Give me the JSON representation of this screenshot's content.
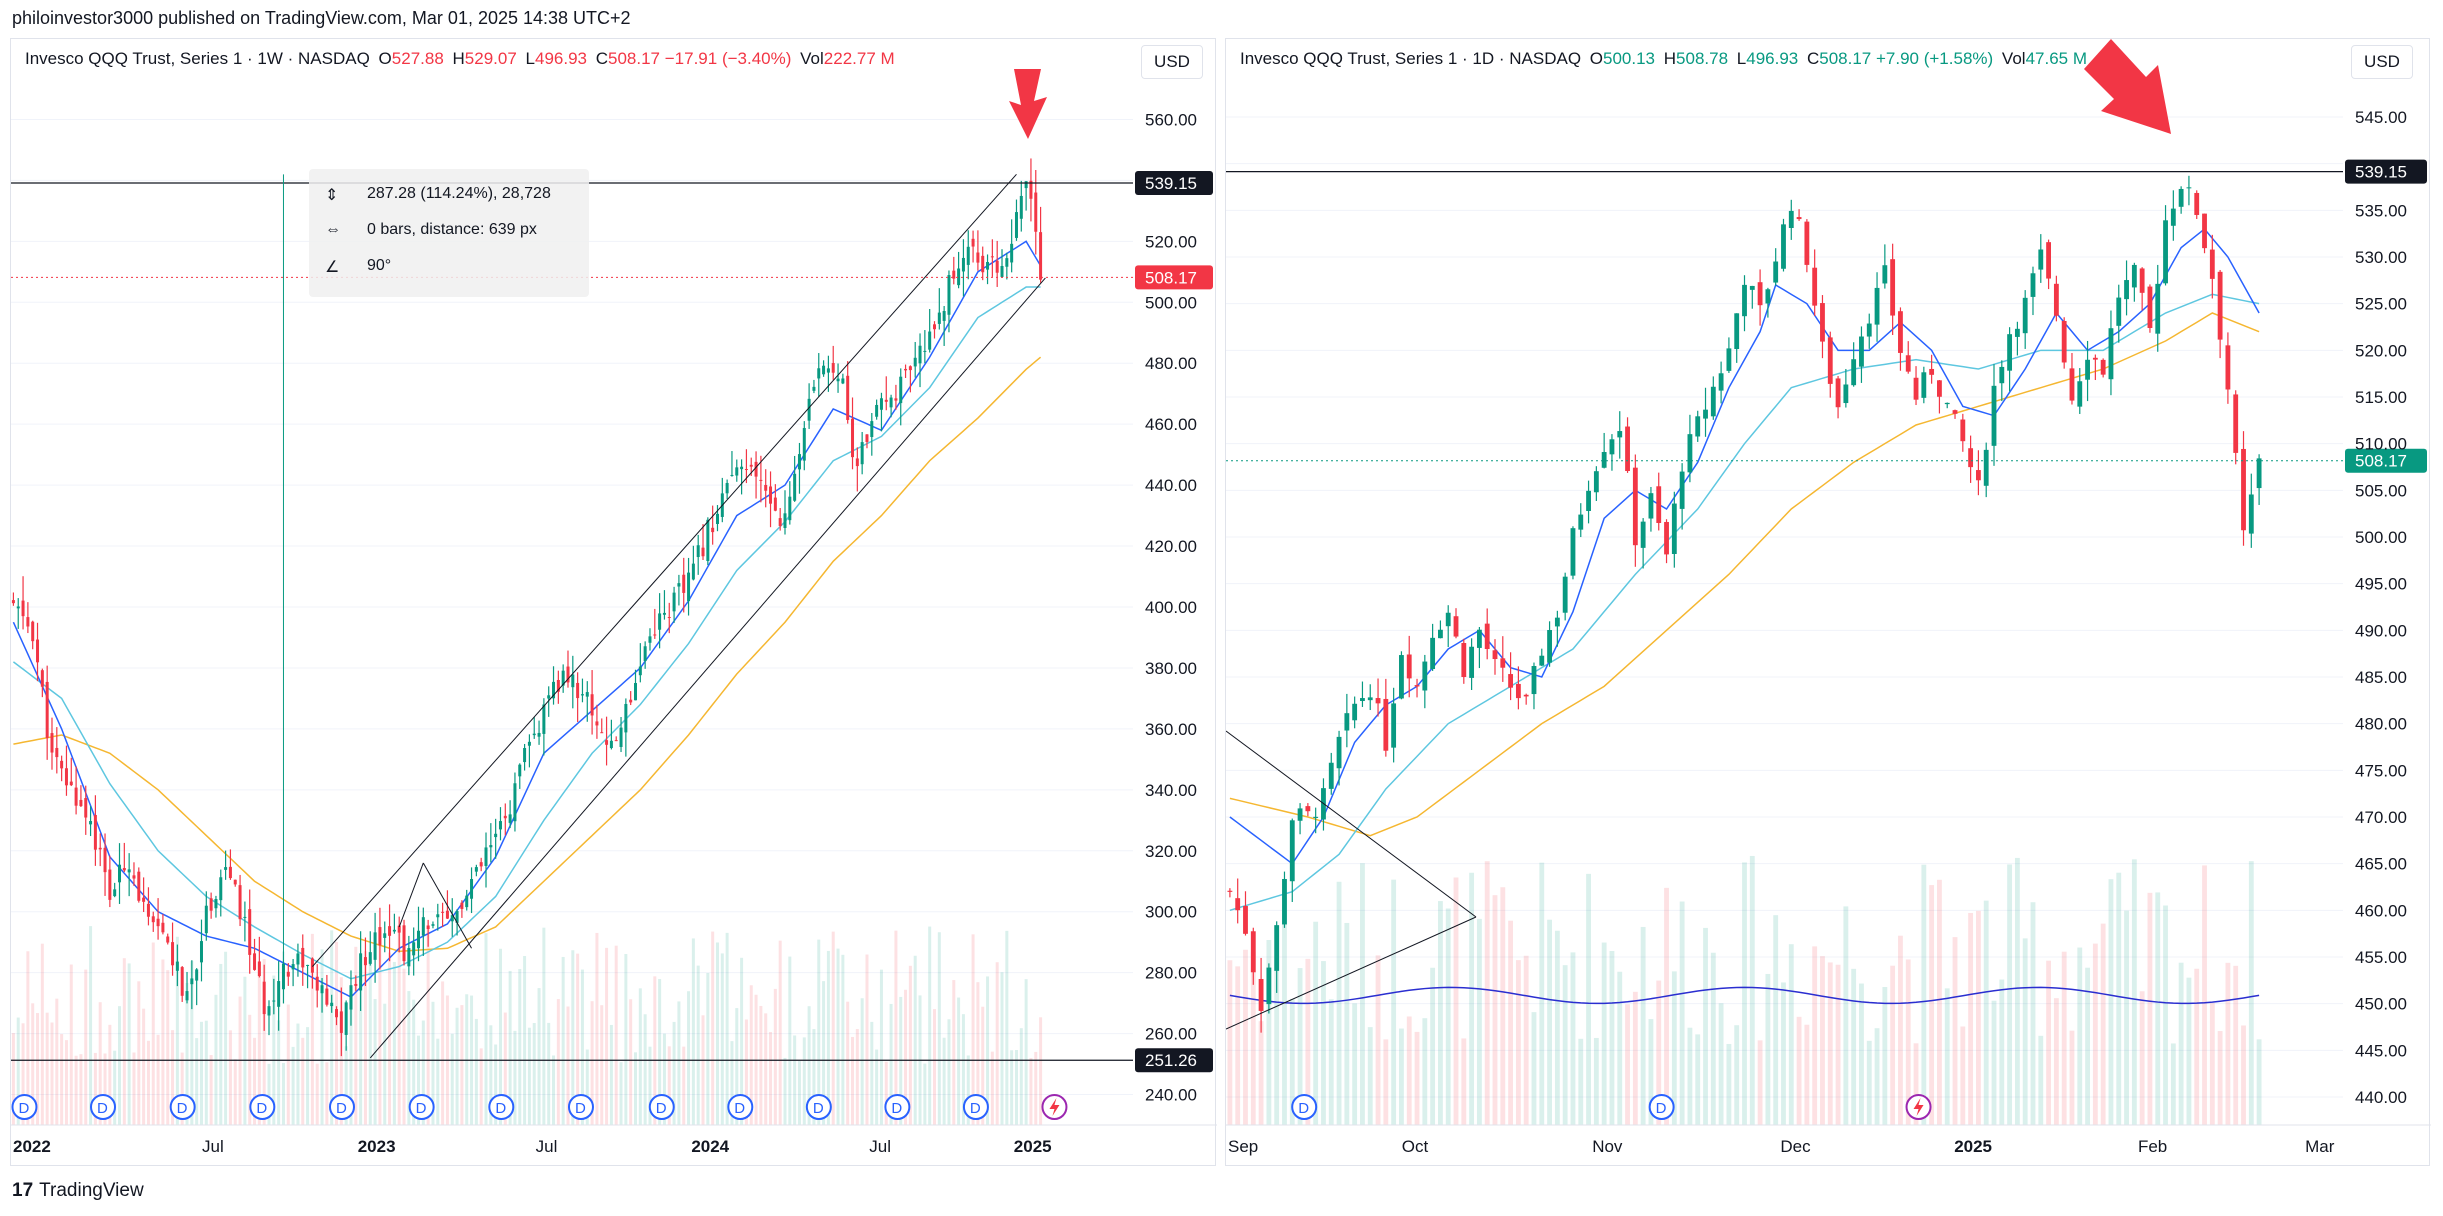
{
  "publisher_line": "philoinvestor3000 published on TradingView.com, Mar 01, 2025 14:38 UTC+2",
  "footer": {
    "logo": "17",
    "brand": "TradingView"
  },
  "colors": {
    "up": "#089981",
    "down": "#f23645",
    "grid": "#f0f3fa",
    "ma_fast": "#2962ff",
    "ma_mid": "#5ec7e0",
    "ma_slow": "#f5b731",
    "annotation_arrow": "#f23645"
  },
  "chart_data": [
    {
      "type": "candlestick",
      "panel": "left",
      "symbol_title": "Invesco QQQ Trust, Series 1 · 1W · NASDAQ",
      "ohlc_labels": {
        "o_key": "O",
        "o": "527.88",
        "h_key": "H",
        "h": "529.07",
        "l_key": "L",
        "l": "496.93",
        "c_key": "C",
        "c": "508.17",
        "change": "−17.91 (−3.40%)",
        "vol_key": "Vol",
        "vol": "222.77 M"
      },
      "currency": "USD",
      "ylim": [
        230,
        570
      ],
      "y_ticks": [
        "560.00",
        "540.00",
        "520.00",
        "500.00",
        "480.00",
        "460.00",
        "440.00",
        "420.00",
        "400.00",
        "380.00",
        "360.00",
        "340.00",
        "320.00",
        "300.00",
        "280.00",
        "260.00",
        "240.00"
      ],
      "y_tick_values": [
        560,
        540,
        520,
        500,
        480,
        460,
        440,
        420,
        400,
        380,
        360,
        340,
        320,
        300,
        280,
        260,
        240
      ],
      "x_ticks": [
        {
          "label": "2022",
          "pos": 0.0
        },
        {
          "label": "Jul",
          "pos": 0.17
        },
        {
          "label": "2023",
          "pos": 0.31
        },
        {
          "label": "Jul",
          "pos": 0.47
        },
        {
          "label": "2024",
          "pos": 0.61
        },
        {
          "label": "Jul",
          "pos": 0.77
        },
        {
          "label": "2025",
          "pos": 0.9
        }
      ],
      "hlines": [
        {
          "value": 539.15,
          "label": "539.15"
        },
        {
          "value": 251.26,
          "label": "251.26"
        }
      ],
      "last_price": {
        "value": 508.17,
        "label": "508.17"
      },
      "measure_tool": {
        "line1": "287.28 (114.24%), 28,728",
        "line2": "0 bars, distance: 639 px",
        "line3": "90°"
      },
      "dividend_marker": "D",
      "anchor_closes": [
        [
          0,
          400
        ],
        [
          4,
          392
        ],
        [
          8,
          350
        ],
        [
          12,
          340
        ],
        [
          16,
          330
        ],
        [
          20,
          305
        ],
        [
          24,
          318
        ],
        [
          28,
          295
        ],
        [
          32,
          290
        ],
        [
          36,
          270
        ],
        [
          40,
          300
        ],
        [
          44,
          315
        ],
        [
          48,
          295
        ],
        [
          52,
          268
        ],
        [
          56,
          282
        ],
        [
          60,
          285
        ],
        [
          64,
          272
        ],
        [
          68,
          262
        ],
        [
          70,
          275
        ],
        [
          74,
          290
        ],
        [
          78,
          296
        ],
        [
          82,
          285
        ],
        [
          86,
          298
        ],
        [
          90,
          295
        ],
        [
          94,
          305
        ],
        [
          98,
          318
        ],
        [
          102,
          330
        ],
        [
          106,
          350
        ],
        [
          110,
          365
        ],
        [
          114,
          378
        ],
        [
          118,
          372
        ],
        [
          122,
          360
        ],
        [
          124,
          352
        ],
        [
          128,
          372
        ],
        [
          132,
          392
        ],
        [
          136,
          400
        ],
        [
          140,
          408
        ],
        [
          144,
          425
        ],
        [
          148,
          440
        ],
        [
          152,
          445
        ],
        [
          156,
          438
        ],
        [
          160,
          428
        ],
        [
          164,
          460
        ],
        [
          168,
          480
        ],
        [
          172,
          478
        ],
        [
          174,
          445
        ],
        [
          178,
          460
        ],
        [
          182,
          470
        ],
        [
          186,
          475
        ],
        [
          190,
          490
        ],
        [
          194,
          505
        ],
        [
          198,
          520
        ],
        [
          202,
          510
        ],
        [
          206,
          515
        ],
        [
          210,
          538
        ],
        [
          212,
          526
        ],
        [
          213,
          508
        ]
      ],
      "ma_fast": [
        [
          0,
          395
        ],
        [
          10,
          360
        ],
        [
          20,
          318
        ],
        [
          30,
          300
        ],
        [
          40,
          292
        ],
        [
          50,
          288
        ],
        [
          60,
          280
        ],
        [
          70,
          272
        ],
        [
          80,
          288
        ],
        [
          90,
          296
        ],
        [
          100,
          318
        ],
        [
          110,
          352
        ],
        [
          120,
          366
        ],
        [
          130,
          380
        ],
        [
          140,
          402
        ],
        [
          150,
          430
        ],
        [
          160,
          440
        ],
        [
          170,
          465
        ],
        [
          180,
          458
        ],
        [
          190,
          482
        ],
        [
          200,
          510
        ],
        [
          210,
          520
        ],
        [
          213,
          512
        ]
      ],
      "ma_mid": [
        [
          0,
          382
        ],
        [
          10,
          370
        ],
        [
          20,
          342
        ],
        [
          30,
          320
        ],
        [
          40,
          305
        ],
        [
          50,
          295
        ],
        [
          60,
          286
        ],
        [
          70,
          278
        ],
        [
          80,
          282
        ],
        [
          90,
          290
        ],
        [
          100,
          305
        ],
        [
          110,
          330
        ],
        [
          120,
          352
        ],
        [
          130,
          368
        ],
        [
          140,
          388
        ],
        [
          150,
          412
        ],
        [
          160,
          428
        ],
        [
          170,
          448
        ],
        [
          180,
          456
        ],
        [
          190,
          472
        ],
        [
          200,
          495
        ],
        [
          210,
          505
        ],
        [
          213,
          505
        ]
      ],
      "ma_slow": [
        [
          0,
          355
        ],
        [
          10,
          358
        ],
        [
          20,
          352
        ],
        [
          30,
          340
        ],
        [
          40,
          325
        ],
        [
          50,
          310
        ],
        [
          60,
          300
        ],
        [
          70,
          292
        ],
        [
          80,
          287
        ],
        [
          90,
          288
        ],
        [
          100,
          295
        ],
        [
          110,
          310
        ],
        [
          120,
          325
        ],
        [
          130,
          340
        ],
        [
          140,
          358
        ],
        [
          150,
          378
        ],
        [
          160,
          395
        ],
        [
          170,
          415
        ],
        [
          180,
          430
        ],
        [
          190,
          448
        ],
        [
          200,
          462
        ],
        [
          210,
          478
        ],
        [
          213,
          482
        ]
      ],
      "volume_overlay": "volume bars"
    },
    {
      "type": "candlestick",
      "panel": "right",
      "symbol_title": "Invesco QQQ Trust, Series 1 · 1D · NASDAQ",
      "ohlc_labels": {
        "o_key": "O",
        "o": "500.13",
        "h_key": "H",
        "h": "508.78",
        "l_key": "L",
        "l": "496.93",
        "c_key": "C",
        "c": "508.17",
        "change": "+7.90 (+1.58%)",
        "vol_key": "Vol",
        "vol": "47.65 M"
      },
      "currency": "USD",
      "ylim": [
        437,
        548
      ],
      "y_ticks": [
        "545.00",
        "540.00",
        "535.00",
        "530.00",
        "525.00",
        "520.00",
        "515.00",
        "510.00",
        "505.00",
        "500.00",
        "495.00",
        "490.00",
        "485.00",
        "480.00",
        "475.00",
        "470.00",
        "465.00",
        "460.00",
        "455.00",
        "450.00",
        "445.00",
        "440.00"
      ],
      "y_tick_values": [
        545,
        540,
        535,
        530,
        525,
        520,
        515,
        510,
        505,
        500,
        495,
        490,
        485,
        480,
        475,
        470,
        465,
        460,
        455,
        450,
        445,
        440
      ],
      "x_ticks": [
        {
          "label": "Sep",
          "pos": 0.0
        },
        {
          "label": "Oct",
          "pos": 0.157
        },
        {
          "label": "Nov",
          "pos": 0.329
        },
        {
          "label": "Dec",
          "pos": 0.499
        },
        {
          "label": "2025",
          "pos": 0.656
        },
        {
          "label": "Feb",
          "pos": 0.822
        },
        {
          "label": "Mar",
          "pos": 0.973
        }
      ],
      "hlines": [
        {
          "value": 539.15,
          "label": "539.15"
        }
      ],
      "last_price": {
        "value": 508.17,
        "label": "508.17"
      },
      "dividend_marker": "D",
      "anchor_closes": [
        [
          0,
          462
        ],
        [
          2,
          458
        ],
        [
          4,
          450
        ],
        [
          6,
          458
        ],
        [
          8,
          470
        ],
        [
          10,
          470
        ],
        [
          12,
          472
        ],
        [
          14,
          478
        ],
        [
          16,
          482
        ],
        [
          18,
          484
        ],
        [
          20,
          478
        ],
        [
          22,
          488
        ],
        [
          24,
          484
        ],
        [
          26,
          490
        ],
        [
          28,
          492
        ],
        [
          30,
          486
        ],
        [
          32,
          490
        ],
        [
          34,
          486
        ],
        [
          36,
          484
        ],
        [
          38,
          482
        ],
        [
          40,
          488
        ],
        [
          42,
          492
        ],
        [
          44,
          500
        ],
        [
          46,
          506
        ],
        [
          48,
          510
        ],
        [
          50,
          512
        ],
        [
          52,
          500
        ],
        [
          54,
          504
        ],
        [
          56,
          498
        ],
        [
          58,
          508
        ],
        [
          60,
          512
        ],
        [
          62,
          516
        ],
        [
          64,
          520
        ],
        [
          66,
          528
        ],
        [
          68,
          524
        ],
        [
          70,
          530
        ],
        [
          72,
          536
        ],
        [
          74,
          530
        ],
        [
          76,
          520
        ],
        [
          78,
          514
        ],
        [
          80,
          520
        ],
        [
          82,
          524
        ],
        [
          84,
          528
        ],
        [
          86,
          520
        ],
        [
          88,
          515
        ],
        [
          90,
          518
        ],
        [
          92,
          514
        ],
        [
          94,
          510
        ],
        [
          96,
          505
        ],
        [
          98,
          516
        ],
        [
          100,
          522
        ],
        [
          102,
          525
        ],
        [
          104,
          530
        ],
        [
          106,
          524
        ],
        [
          108,
          515
        ],
        [
          110,
          520
        ],
        [
          112,
          518
        ],
        [
          114,
          526
        ],
        [
          116,
          528
        ],
        [
          118,
          522
        ],
        [
          120,
          534
        ],
        [
          122,
          538
        ],
        [
          124,
          535
        ],
        [
          126,
          528
        ],
        [
          128,
          516
        ],
        [
          130,
          500
        ],
        [
          132,
          508
        ]
      ],
      "ma_fast": [
        [
          0,
          470
        ],
        [
          8,
          465
        ],
        [
          12,
          470
        ],
        [
          16,
          478
        ],
        [
          20,
          482
        ],
        [
          24,
          484
        ],
        [
          28,
          488
        ],
        [
          32,
          490
        ],
        [
          36,
          486
        ],
        [
          40,
          485
        ],
        [
          44,
          492
        ],
        [
          48,
          502
        ],
        [
          52,
          505
        ],
        [
          56,
          503
        ],
        [
          60,
          508
        ],
        [
          64,
          516
        ],
        [
          68,
          522
        ],
        [
          70,
          527
        ],
        [
          74,
          525
        ],
        [
          78,
          520
        ],
        [
          82,
          520
        ],
        [
          86,
          523
        ],
        [
          90,
          520
        ],
        [
          94,
          514
        ],
        [
          98,
          513
        ],
        [
          102,
          518
        ],
        [
          106,
          524
        ],
        [
          110,
          520
        ],
        [
          114,
          522
        ],
        [
          118,
          525
        ],
        [
          122,
          531
        ],
        [
          125,
          533
        ],
        [
          128,
          530
        ],
        [
          132,
          524
        ]
      ],
      "ma_mid": [
        [
          0,
          460
        ],
        [
          8,
          462
        ],
        [
          14,
          466
        ],
        [
          20,
          473
        ],
        [
          28,
          480
        ],
        [
          36,
          484
        ],
        [
          44,
          488
        ],
        [
          52,
          496
        ],
        [
          60,
          503
        ],
        [
          66,
          510
        ],
        [
          72,
          516
        ],
        [
          80,
          518
        ],
        [
          88,
          519
        ],
        [
          96,
          518
        ],
        [
          104,
          520
        ],
        [
          112,
          520
        ],
        [
          120,
          524
        ],
        [
          126,
          526
        ],
        [
          132,
          525
        ]
      ],
      "ma_slow": [
        [
          0,
          472
        ],
        [
          10,
          470
        ],
        [
          18,
          468
        ],
        [
          24,
          470
        ],
        [
          32,
          475
        ],
        [
          40,
          480
        ],
        [
          48,
          484
        ],
        [
          56,
          490
        ],
        [
          64,
          496
        ],
        [
          72,
          503
        ],
        [
          80,
          508
        ],
        [
          88,
          512
        ],
        [
          96,
          514
        ],
        [
          104,
          516
        ],
        [
          112,
          518
        ],
        [
          120,
          521
        ],
        [
          126,
          524
        ],
        [
          132,
          522
        ]
      ],
      "volume_overlay": "volume bars"
    }
  ]
}
